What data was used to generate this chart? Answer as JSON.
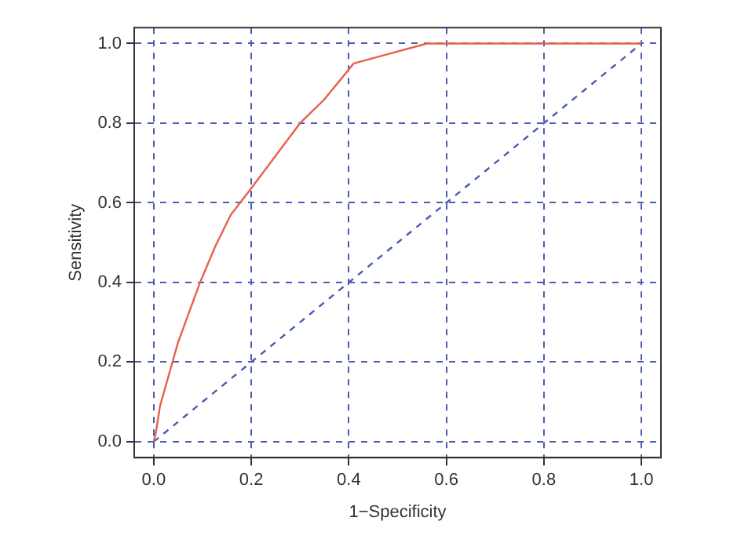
{
  "chart_data": {
    "type": "line",
    "xlabel": "1−Specificity",
    "ylabel": "Sensitivity",
    "xlim": [
      -0.04,
      1.04
    ],
    "ylim": [
      -0.04,
      1.04
    ],
    "xticks": [
      {
        "value": 0,
        "label": "0.0"
      },
      0.2,
      0.4,
      0.6,
      0.8,
      {
        "value": 1,
        "label": "1.0"
      }
    ],
    "yticks": [
      {
        "value": 0,
        "label": "0.0"
      },
      0.2,
      0.4,
      0.6,
      0.8,
      {
        "value": 1,
        "label": "1.0"
      }
    ],
    "grid": true,
    "marker": "none",
    "series": [
      {
        "color": "#e8604c",
        "x": [
          0,
          0.004,
          0.013,
          0.05,
          0.095,
          0.126,
          0.158,
          0.196,
          0.3,
          0.35,
          0.41,
          0.5,
          0.56,
          1
        ],
        "values": [
          0,
          0.02,
          0.09,
          0.25,
          0.4,
          0.49,
          0.57,
          0.63,
          0.8,
          0.86,
          0.95,
          0.98,
          1,
          1
        ]
      },
      {
        "color": "#4a5bb0",
        "line_style": "dashed",
        "x": [
          0,
          1
        ],
        "values": [
          0,
          1
        ]
      }
    ]
  }
}
